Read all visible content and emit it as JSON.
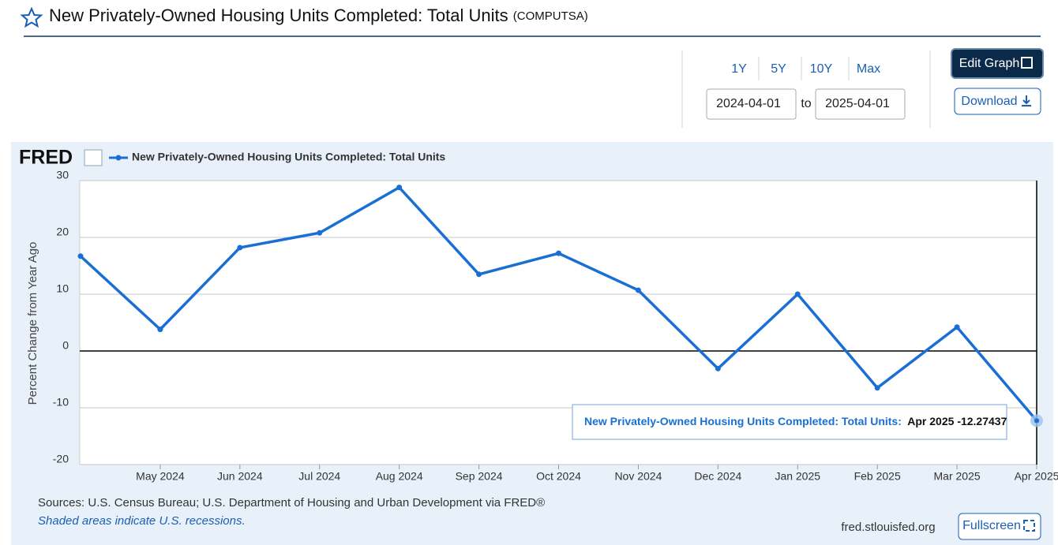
{
  "header": {
    "title": "New Privately-Owned Housing Units Completed: Total Units",
    "code": "(COMPUTSA)"
  },
  "controls": {
    "ranges": [
      "1Y",
      "5Y",
      "10Y",
      "Max"
    ],
    "start_date": "2024-04-01",
    "to": "to",
    "end_date": "2025-04-01",
    "edit": "Edit Graph",
    "download": "Download"
  },
  "chart_data": {
    "type": "line",
    "logo": "FRED",
    "y_label": "Percent Change from Year Ago",
    "categories": [
      null,
      "May 2024",
      "Jun 2024",
      "Jul 2024",
      "Aug 2024",
      "Sep 2024",
      "Oct 2024",
      "Nov 2024",
      "Dec 2024",
      "Jan 2025",
      "Feb 2025",
      "Mar 2025",
      "Apr 2025"
    ],
    "series": [
      {
        "name": "New Privately-Owned Housing Units Completed: Total Units",
        "color": "#1a6fd4",
        "values": [
          16.7,
          3.8,
          18.2,
          20.8,
          28.8,
          13.5,
          17.2,
          10.7,
          -3.1,
          10.0,
          -6.5,
          4.2,
          -12.27437
        ]
      }
    ],
    "ylim": [
      -20,
      30
    ],
    "yticks": [
      -20,
      -10,
      0,
      10,
      20,
      30
    ],
    "grid": true,
    "tooltip": {
      "label": "New Privately-Owned Housing Units Completed: Total Units:"
    }
  },
  "footer": {
    "sources": "Sources: U.S. Census Bureau; U.S. Department of Housing and Urban Development via FRED®",
    "note": "Shaded areas indicate U.S. recessions.",
    "site": "fred.stlouisfed.org",
    "fullscreen": "Fullscreen"
  }
}
